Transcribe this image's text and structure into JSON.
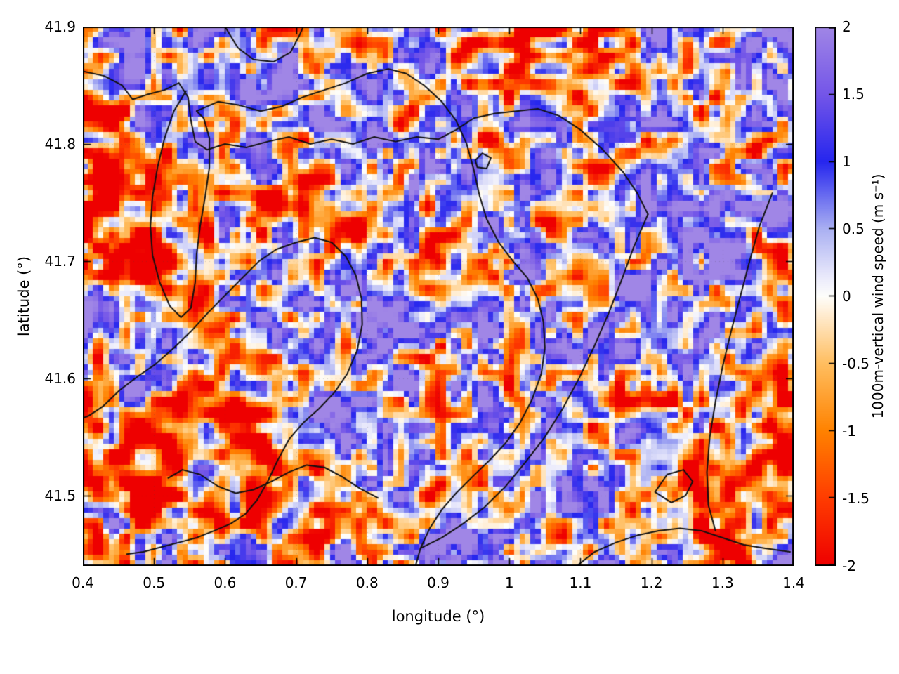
{
  "figure": {
    "background": "#ffffff",
    "plot_border_color": "#000000"
  },
  "chart_data": {
    "type": "heatmap",
    "title": "",
    "xlabel": "longitude (°)",
    "ylabel": "latitude (°)",
    "colorbar_label": "1000m-vertical wind speed (m s⁻¹)",
    "x_range": [
      0.4,
      1.4
    ],
    "y_range": [
      41.44,
      41.9
    ],
    "value_range": [
      -2,
      2
    ],
    "grid": "faint dotted at major ticks",
    "legend": "colorbar right",
    "x_ticks": [
      0.4,
      0.5,
      0.6,
      0.7,
      0.8,
      0.9,
      1.0,
      1.1,
      1.2,
      1.3,
      1.4
    ],
    "x_tick_labels": [
      "0.4",
      "0.5",
      "0.6",
      "0.7",
      "0.8",
      "0.9",
      "1",
      "1.1",
      "1.2",
      "1.3",
      "1.4"
    ],
    "y_ticks": [
      41.5,
      41.6,
      41.7,
      41.8,
      41.9
    ],
    "y_tick_labels": [
      "41.5",
      "41.6",
      "41.7",
      "41.8",
      "41.9"
    ],
    "colorbar_ticks": [
      2,
      1.5,
      1,
      0.5,
      0,
      -0.5,
      -1,
      -1.5,
      -2
    ],
    "colorbar_tick_labels": [
      "2",
      "1.5",
      "1",
      "0.5",
      "0",
      "-0.5",
      "-1",
      "-1.5",
      "-2"
    ],
    "palette_stops": [
      {
        "v": -2.0,
        "color": "#ee0000"
      },
      {
        "v": -1.5,
        "color": "#ff3c00"
      },
      {
        "v": -1.0,
        "color": "#ff8200"
      },
      {
        "v": -0.5,
        "color": "#ffbe60"
      },
      {
        "v": -0.15,
        "color": "#ffeacc"
      },
      {
        "v": 0.0,
        "color": "#fefefb"
      },
      {
        "v": 0.15,
        "color": "#e9e9fb"
      },
      {
        "v": 0.5,
        "color": "#aab0f2"
      },
      {
        "v": 1.0,
        "color": "#2626ee"
      },
      {
        "v": 1.5,
        "color": "#7456e8"
      },
      {
        "v": 2.0,
        "color": "#a086e6"
      }
    ],
    "field": {
      "description": "Turbulent 1000 m vertical wind speed field: granular convective cells, orange/red negative (downdraft) regions dominating with scattered blue/purple positive (updraft) blobs; values roughly -2 to +2 m/s. Procedurally regenerated noise approximation of the pixel field.",
      "nx": 135,
      "ny": 102,
      "seed": 1337,
      "octaves": [
        {
          "scale": 2.6,
          "weight": 1.05
        },
        {
          "scale": 5.5,
          "weight": 0.7
        },
        {
          "scale": 11.0,
          "weight": 0.5
        },
        {
          "scale": 28.0,
          "weight": 0.45
        }
      ],
      "gain": 2.1,
      "bias": -0.15
    },
    "contour_color": "#111111",
    "contours": [
      [
        [
          0.4,
          41.862
        ],
        [
          0.43,
          41.858
        ],
        [
          0.455,
          41.85
        ],
        [
          0.47,
          41.838
        ],
        [
          0.49,
          41.842
        ],
        [
          0.515,
          41.846
        ],
        [
          0.535,
          41.852
        ],
        [
          0.548,
          41.84
        ],
        [
          0.552,
          41.82
        ],
        [
          0.558,
          41.802
        ],
        [
          0.575,
          41.795
        ],
        [
          0.6,
          41.8
        ],
        [
          0.63,
          41.797
        ],
        [
          0.66,
          41.802
        ],
        [
          0.69,
          41.806
        ],
        [
          0.72,
          41.8
        ],
        [
          0.75,
          41.804
        ],
        [
          0.78,
          41.8
        ],
        [
          0.81,
          41.806
        ],
        [
          0.84,
          41.802
        ],
        [
          0.87,
          41.806
        ],
        [
          0.9,
          41.804
        ],
        [
          0.925,
          41.812
        ],
        [
          0.95,
          41.822
        ],
        [
          0.98,
          41.826
        ],
        [
          1.01,
          41.828
        ],
        [
          1.04,
          41.83
        ],
        [
          1.07,
          41.824
        ],
        [
          1.1,
          41.812
        ],
        [
          1.13,
          41.796
        ],
        [
          1.16,
          41.776
        ],
        [
          1.18,
          41.758
        ],
        [
          1.195,
          41.74
        ]
      ],
      [
        [
          0.6,
          41.9
        ],
        [
          0.618,
          41.882
        ],
        [
          0.64,
          41.872
        ],
        [
          0.668,
          41.87
        ],
        [
          0.692,
          41.878
        ],
        [
          0.705,
          41.893
        ],
        [
          0.71,
          41.9
        ]
      ],
      [
        [
          0.56,
          41.828
        ],
        [
          0.59,
          41.836
        ],
        [
          0.62,
          41.833
        ],
        [
          0.65,
          41.828
        ],
        [
          0.68,
          41.832
        ],
        [
          0.71,
          41.84
        ],
        [
          0.74,
          41.846
        ],
        [
          0.77,
          41.852
        ],
        [
          0.8,
          41.86
        ],
        [
          0.83,
          41.864
        ],
        [
          0.855,
          41.86
        ],
        [
          0.88,
          41.85
        ],
        [
          0.905,
          41.836
        ],
        [
          0.925,
          41.82
        ],
        [
          0.94,
          41.8
        ],
        [
          0.95,
          41.778
        ],
        [
          0.958,
          41.756
        ],
        [
          0.968,
          41.736
        ],
        [
          0.985,
          41.716
        ],
        [
          1.005,
          41.7
        ],
        [
          1.025,
          41.686
        ],
        [
          1.04,
          41.668
        ],
        [
          1.048,
          41.648
        ],
        [
          1.05,
          41.626
        ],
        [
          1.045,
          41.604
        ],
        [
          1.032,
          41.582
        ],
        [
          1.015,
          41.562
        ],
        [
          0.995,
          41.545
        ],
        [
          0.972,
          41.53
        ],
        [
          0.948,
          41.516
        ],
        [
          0.925,
          41.502
        ],
        [
          0.905,
          41.488
        ],
        [
          0.888,
          41.472
        ],
        [
          0.875,
          41.455
        ],
        [
          0.868,
          41.44
        ]
      ],
      [
        [
          0.545,
          41.845
        ],
        [
          0.528,
          41.828
        ],
        [
          0.515,
          41.805
        ],
        [
          0.505,
          41.78
        ],
        [
          0.498,
          41.755
        ],
        [
          0.495,
          41.73
        ],
        [
          0.498,
          41.705
        ],
        [
          0.508,
          41.682
        ],
        [
          0.522,
          41.662
        ],
        [
          0.538,
          41.652
        ],
        [
          0.552,
          41.66
        ],
        [
          0.558,
          41.682
        ],
        [
          0.56,
          41.706
        ],
        [
          0.565,
          41.73
        ],
        [
          0.572,
          41.755
        ],
        [
          0.578,
          41.78
        ],
        [
          0.578,
          41.805
        ],
        [
          0.57,
          41.822
        ],
        [
          0.56,
          41.828
        ]
      ],
      [
        [
          0.628,
          41.688
        ],
        [
          0.648,
          41.7
        ],
        [
          0.672,
          41.71
        ],
        [
          0.7,
          41.716
        ],
        [
          0.726,
          41.72
        ],
        [
          0.75,
          41.716
        ],
        [
          0.77,
          41.704
        ],
        [
          0.784,
          41.688
        ],
        [
          0.792,
          41.668
        ],
        [
          0.793,
          41.646
        ],
        [
          0.786,
          41.624
        ],
        [
          0.772,
          41.604
        ],
        [
          0.754,
          41.588
        ],
        [
          0.732,
          41.574
        ],
        [
          0.71,
          41.562
        ],
        [
          0.69,
          41.548
        ],
        [
          0.674,
          41.53
        ],
        [
          0.66,
          41.512
        ],
        [
          0.645,
          41.496
        ],
        [
          0.628,
          41.484
        ],
        [
          0.608,
          41.476
        ],
        [
          0.585,
          41.47
        ],
        [
          0.56,
          41.464
        ],
        [
          0.535,
          41.46
        ],
        [
          0.51,
          41.456
        ],
        [
          0.485,
          41.452
        ],
        [
          0.462,
          41.45
        ]
      ],
      [
        [
          0.628,
          41.688
        ],
        [
          0.602,
          41.672
        ],
        [
          0.576,
          41.656
        ],
        [
          0.552,
          41.64
        ],
        [
          0.528,
          41.626
        ],
        [
          0.502,
          41.612
        ],
        [
          0.478,
          41.602
        ],
        [
          0.452,
          41.59
        ],
        [
          0.428,
          41.576
        ],
        [
          0.408,
          41.568
        ],
        [
          0.4,
          41.566
        ]
      ],
      [
        [
          0.52,
          41.515
        ],
        [
          0.54,
          41.522
        ],
        [
          0.565,
          41.518
        ],
        [
          0.59,
          41.508
        ],
        [
          0.615,
          41.502
        ],
        [
          0.64,
          41.505
        ],
        [
          0.665,
          41.512
        ],
        [
          0.69,
          41.52
        ],
        [
          0.715,
          41.526
        ],
        [
          0.74,
          41.524
        ],
        [
          0.765,
          41.516
        ],
        [
          0.79,
          41.506
        ],
        [
          0.815,
          41.498
        ]
      ],
      [
        [
          1.195,
          41.74
        ],
        [
          1.175,
          41.712
        ],
        [
          1.158,
          41.684
        ],
        [
          1.14,
          41.656
        ],
        [
          1.12,
          41.628
        ],
        [
          1.098,
          41.6
        ],
        [
          1.075,
          41.574
        ],
        [
          1.05,
          41.55
        ],
        [
          1.022,
          41.528
        ],
        [
          0.995,
          41.508
        ],
        [
          0.965,
          41.49
        ],
        [
          0.935,
          41.476
        ],
        [
          0.905,
          41.464
        ],
        [
          0.875,
          41.455
        ]
      ],
      [
        [
          1.37,
          41.758
        ],
        [
          1.352,
          41.73
        ],
        [
          1.338,
          41.7
        ],
        [
          1.325,
          41.67
        ],
        [
          1.312,
          41.64
        ],
        [
          1.3,
          41.61
        ],
        [
          1.29,
          41.58
        ],
        [
          1.282,
          41.55
        ],
        [
          1.278,
          41.52
        ],
        [
          1.28,
          41.492
        ],
        [
          1.29,
          41.47
        ]
      ],
      [
        [
          1.095,
          41.44
        ],
        [
          1.12,
          41.452
        ],
        [
          1.15,
          41.46
        ],
        [
          1.18,
          41.466
        ],
        [
          1.21,
          41.47
        ],
        [
          1.24,
          41.472
        ],
        [
          1.27,
          41.47
        ],
        [
          1.3,
          41.464
        ],
        [
          1.33,
          41.458
        ],
        [
          1.36,
          41.455
        ],
        [
          1.395,
          41.452
        ]
      ],
      [
        [
          1.205,
          41.503
        ],
        [
          1.222,
          41.518
        ],
        [
          1.245,
          41.522
        ],
        [
          1.258,
          41.512
        ],
        [
          1.248,
          41.5
        ],
        [
          1.228,
          41.494
        ],
        [
          1.205,
          41.503
        ]
      ],
      [
        [
          0.952,
          41.786
        ],
        [
          0.962,
          41.792
        ],
        [
          0.974,
          41.788
        ],
        [
          0.968,
          41.779
        ],
        [
          0.955,
          41.78
        ],
        [
          0.952,
          41.786
        ]
      ]
    ]
  }
}
